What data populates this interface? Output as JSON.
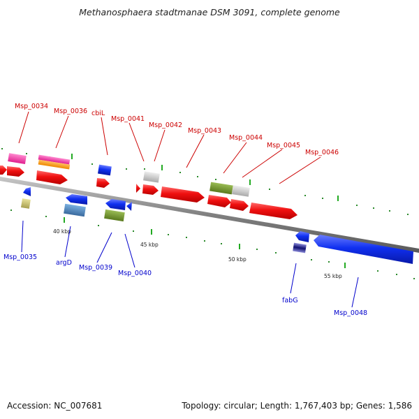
{
  "header": {
    "title": "Methanosphaera stadtmanae DSM 3091, complete genome"
  },
  "footer": {
    "accession": "Accession: NC_007681",
    "summary": "Topology: circular; Length: 1,767,403 bp; Genes: 1,586"
  },
  "ticks": {
    "k40": "40 kbp",
    "k45": "45 kbp",
    "k50": "50 kbp",
    "k55": "55 kbp"
  },
  "genes": {
    "msp0034": "Msp_0034",
    "msp0036": "Msp_0036",
    "cbiL": "cbiL",
    "msp0041": "Msp_0041",
    "msp0042": "Msp_0042",
    "msp0043": "Msp_0043",
    "msp0044": "Msp_0044",
    "msp0045": "Msp_0045",
    "msp0046": "Msp_0046",
    "msp0035": "Msp_0035",
    "argD": "argD",
    "msp0039": "Msp_0039",
    "msp0040": "Msp_0040",
    "fabG": "fabG",
    "msp0048": "Msp_0048"
  },
  "colors": {
    "forward_strand_label": "#cc0000",
    "reverse_strand_label": "#0000cc",
    "forward_gene": "#ee1111",
    "reverse_gene": "#1133ee",
    "backbone": "#888888",
    "tick": "#22aa22"
  }
}
